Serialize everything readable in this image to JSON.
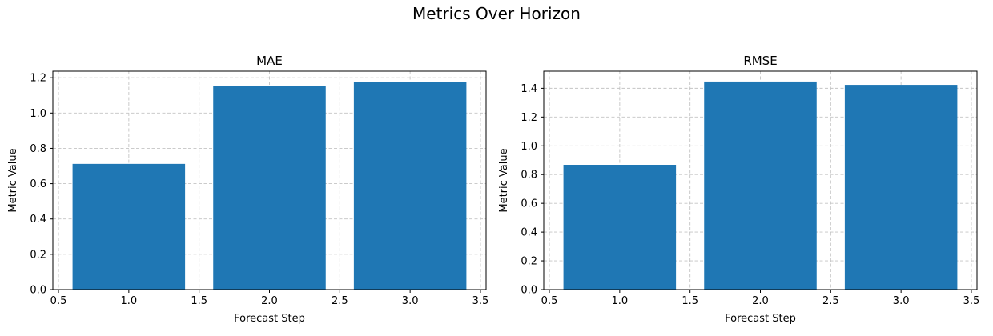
{
  "suptitle": "Metrics Over Horizon",
  "colors": {
    "bar": "#1f77b4",
    "grid": "#c4c4c4",
    "axis": "#000000"
  },
  "chart_data": [
    {
      "type": "bar",
      "title": "MAE",
      "xlabel": "Forecast Step",
      "ylabel": "Metric Value",
      "x": [
        1,
        2,
        3
      ],
      "values": [
        0.712,
        1.152,
        1.178
      ],
      "bar_width": 0.8,
      "xlim": [
        0.46,
        3.54
      ],
      "ylim": [
        0,
        1.237
      ],
      "xticks": [
        0.5,
        1.0,
        1.5,
        2.0,
        2.5,
        3.0,
        3.5
      ],
      "xtick_labels": [
        "0.5",
        "1.0",
        "1.5",
        "2.0",
        "2.5",
        "3.0",
        "3.5"
      ],
      "yticks": [
        0,
        0.2,
        0.4,
        0.6,
        0.8,
        1.0,
        1.2
      ],
      "ytick_labels": [
        "0.0",
        "0.2",
        "0.4",
        "0.6",
        "0.8",
        "1.0",
        "1.2"
      ],
      "grid": true
    },
    {
      "type": "bar",
      "title": "RMSE",
      "xlabel": "Forecast Step",
      "ylabel": "Metric Value",
      "x": [
        1,
        2,
        3
      ],
      "values": [
        0.868,
        1.447,
        1.424
      ],
      "bar_width": 0.8,
      "xlim": [
        0.46,
        3.54
      ],
      "ylim": [
        0,
        1.519
      ],
      "xticks": [
        0.5,
        1.0,
        1.5,
        2.0,
        2.5,
        3.0,
        3.5
      ],
      "xtick_labels": [
        "0.5",
        "1.0",
        "1.5",
        "2.0",
        "2.5",
        "3.0",
        "3.5"
      ],
      "yticks": [
        0,
        0.2,
        0.4,
        0.6,
        0.8,
        1.0,
        1.2,
        1.4
      ],
      "ytick_labels": [
        "0.0",
        "0.2",
        "0.4",
        "0.6",
        "0.8",
        "1.0",
        "1.2",
        "1.4"
      ],
      "grid": true
    }
  ]
}
